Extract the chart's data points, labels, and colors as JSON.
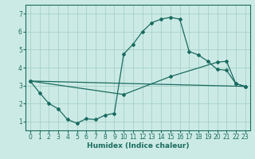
{
  "xlabel": "Humidex (Indice chaleur)",
  "ylabel": "",
  "background_color": "#cceae5",
  "grid_color": "#aad4ce",
  "line_color": "#1a6b60",
  "xlim": [
    -0.5,
    23.5
  ],
  "ylim": [
    0.5,
    7.5
  ],
  "xticks": [
    0,
    1,
    2,
    3,
    4,
    5,
    6,
    7,
    8,
    9,
    10,
    11,
    12,
    13,
    14,
    15,
    16,
    17,
    18,
    19,
    20,
    21,
    22,
    23
  ],
  "yticks": [
    1,
    2,
    3,
    4,
    5,
    6,
    7
  ],
  "line1_x": [
    0,
    1,
    2,
    3,
    4,
    5,
    6,
    7,
    8,
    9,
    10,
    11,
    12,
    13,
    14,
    15,
    16,
    17,
    18,
    19,
    20,
    21,
    22,
    23
  ],
  "line1_y": [
    3.25,
    2.6,
    2.0,
    1.7,
    1.1,
    0.9,
    1.15,
    1.1,
    1.35,
    1.45,
    4.75,
    5.3,
    6.0,
    6.5,
    6.7,
    6.8,
    6.7,
    4.9,
    4.7,
    4.35,
    3.9,
    3.85,
    3.1,
    2.95
  ],
  "line2_x": [
    0,
    23
  ],
  "line2_y": [
    3.25,
    2.95
  ],
  "line3_x": [
    0,
    10,
    15,
    20,
    21,
    22,
    23
  ],
  "line3_y": [
    3.25,
    2.5,
    3.5,
    4.3,
    4.35,
    3.1,
    2.95
  ]
}
